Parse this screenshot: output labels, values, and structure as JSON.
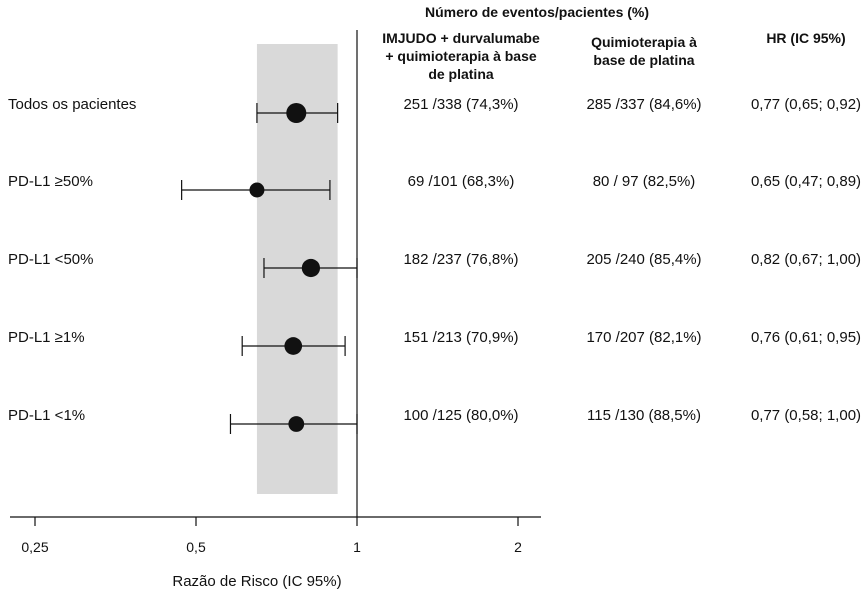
{
  "chart_data": {
    "type": "forest",
    "scale": "log",
    "xlim": [
      0.22,
      2.3
    ],
    "xticks": [
      "0,25",
      "0,5",
      "1",
      "2"
    ],
    "xtick_values": [
      0.25,
      0.5,
      1,
      2
    ],
    "xlabel": "Razão de Risco (IC 95%)",
    "reference_line": 1,
    "shaded_band": [
      0.65,
      0.92
    ],
    "header": "Número de eventos/pacientes (%)",
    "columns": [
      "IMJUDO + durvalumabe\n+ quimioterapia à base\nde platina",
      "Quimioterapia à\nbase de platina",
      "HR (IC 95%)"
    ],
    "rows": [
      {
        "label": "Todos os pacientes",
        "hr": 0.77,
        "lo": 0.65,
        "hi": 0.92,
        "n": 675,
        "col1": "251 /338 (74,3%)",
        "col2": "285 /337 (84,6%)",
        "col3": "0,77 (0,65; 0,92)"
      },
      {
        "label": "PD-L1 ≥50%",
        "hr": 0.65,
        "lo": 0.47,
        "hi": 0.89,
        "n": 198,
        "col1": "69 /101 (68,3%)",
        "col2": "80 / 97 (82,5%)",
        "col3": "0,65 (0,47; 0,89)"
      },
      {
        "label": "PD-L1 <50%",
        "hr": 0.82,
        "lo": 0.67,
        "hi": 1.0,
        "n": 477,
        "col1": "182 /237 (76,8%)",
        "col2": "205 /240 (85,4%)",
        "col3": "0,82 (0,67; 1,00)"
      },
      {
        "label": "PD-L1 ≥1%",
        "hr": 0.76,
        "lo": 0.61,
        "hi": 0.95,
        "n": 420,
        "col1": "151 /213 (70,9%)",
        "col2": "170 /207 (82,1%)",
        "col3": "0,76 (0,61; 0,95)"
      },
      {
        "label": "PD-L1 <1%",
        "hr": 0.77,
        "lo": 0.58,
        "hi": 1.0,
        "n": 255,
        "col1": "100 /125 (80,0%)",
        "col2": "115 /130 (88,5%)",
        "col3": "0,77 (0,58; 1,00)"
      }
    ]
  },
  "colors": {
    "band": "#d9d9d9",
    "ink": "#111111"
  }
}
